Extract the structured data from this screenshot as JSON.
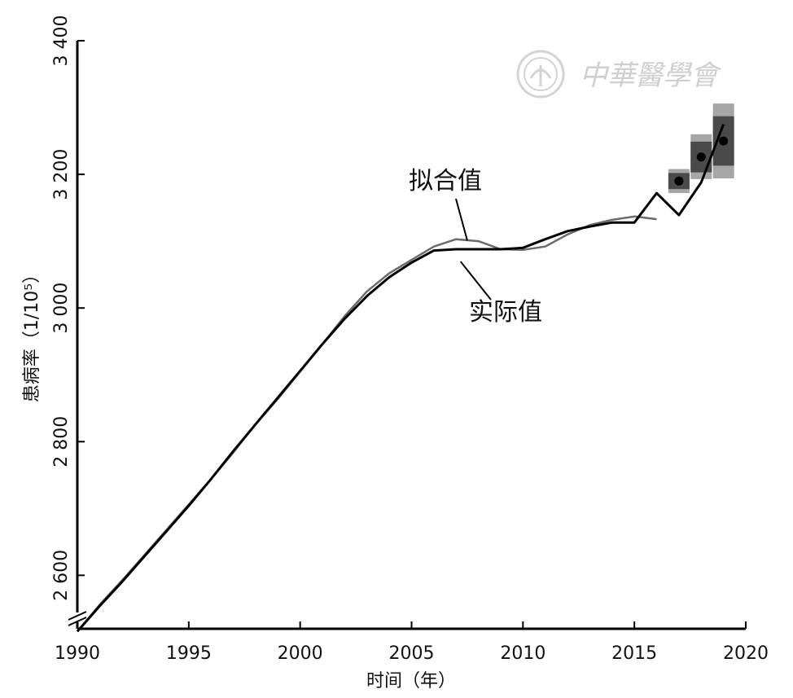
{
  "chart_data": {
    "type": "line",
    "title": "",
    "xlabel": "时间（年）",
    "ylabel": "患病率（1/10⁵）",
    "xlim": [
      1990,
      2020
    ],
    "ylim": [
      2520,
      3400
    ],
    "x_ticks": [
      1990,
      1995,
      2000,
      2005,
      2010,
      2015,
      2020
    ],
    "x_tick_labels": [
      "1990",
      "1995",
      "2000",
      "2005",
      "2010",
      "2015",
      "2020"
    ],
    "y_ticks": [
      2600,
      2800,
      3000,
      3200,
      3400
    ],
    "y_tick_labels": [
      "2 600",
      "2 800",
      "3 000",
      "3 200",
      "3 400"
    ],
    "axis_break_y": true,
    "grid": false,
    "series": [
      {
        "name": "拟合值",
        "color": "#6b6b6b",
        "x": [
          1990,
          1991,
          1992,
          1993,
          1994,
          1995,
          1996,
          1997,
          1998,
          1999,
          2000,
          2001,
          2002,
          2003,
          2004,
          2005,
          2006,
          2007,
          2008,
          2009,
          2010,
          2011,
          2012,
          2013,
          2014,
          2015,
          2016
        ],
        "y": [
          2516,
          2556,
          2592,
          2630,
          2668,
          2706,
          2744,
          2784,
          2826,
          2864,
          2905,
          2946,
          2988,
          3025,
          3052,
          3072,
          3092,
          3103,
          3100,
          3088,
          3087,
          3092,
          3110,
          3124,
          3132,
          3137,
          3133
        ]
      },
      {
        "name": "实际值",
        "color": "#000000",
        "x": [
          1990,
          1991,
          1992,
          1993,
          1994,
          1995,
          1996,
          1997,
          1998,
          1999,
          2000,
          2001,
          2002,
          2003,
          2004,
          2005,
          2006,
          2007,
          2008,
          2009,
          2010,
          2011,
          2012,
          2013,
          2014,
          2015,
          2016,
          2017,
          2018,
          2019
        ],
        "y": [
          2516,
          2554,
          2590,
          2628,
          2666,
          2704,
          2744,
          2786,
          2826,
          2866,
          2906,
          2946,
          2984,
          3018,
          3046,
          3068,
          3086,
          3088,
          3088,
          3088,
          3090,
          3103,
          3115,
          3122,
          3128,
          3128,
          3172,
          3139,
          3188,
          3275
        ]
      }
    ],
    "forecast": [
      {
        "x": 2017,
        "y": 3190,
        "inner": [
          3178,
          3202
        ],
        "outer": [
          3172,
          3208
        ]
      },
      {
        "x": 2018,
        "y": 3226,
        "inner": [
          3203,
          3249
        ],
        "outer": [
          3193,
          3260
        ]
      },
      {
        "x": 2019,
        "y": 3250,
        "inner": [
          3213,
          3287
        ],
        "outer": [
          3194,
          3306
        ]
      }
    ],
    "annotations": [
      {
        "text": "拟合值",
        "series": "拟合值",
        "point_x": 2007.5,
        "point_y": 3101
      },
      {
        "text": "实际值",
        "series": "实际值",
        "point_x": 2007.2,
        "point_y": 3089
      }
    ],
    "colors": {
      "band_outer": "#a6a6a6",
      "band_inner": "#4a4a4a",
      "point": "#000000"
    }
  },
  "watermark": {
    "text": "中華醫學會"
  }
}
